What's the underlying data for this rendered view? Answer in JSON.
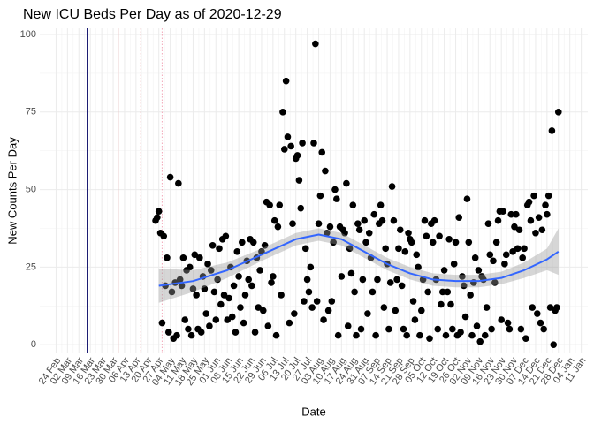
{
  "chart_data": {
    "type": "scatter",
    "title": "New ICU Beds Per Day as of 2020-12-29",
    "xlabel": "Date",
    "ylabel": "New Counts Per Day",
    "xlim": [
      "02-14",
      "01-15"
    ],
    "ylim": [
      -2.8,
      102
    ],
    "yticks": [
      0,
      25,
      50,
      75,
      100
    ],
    "xticks": [
      {
        "value": "02-24",
        "label": "24 Feb"
      },
      {
        "value": "03-02",
        "label": "02 Mar"
      },
      {
        "value": "03-09",
        "label": "09 Mar"
      },
      {
        "value": "03-16",
        "label": "16 Mar"
      },
      {
        "value": "03-23",
        "label": "23 Mar"
      },
      {
        "value": "03-30",
        "label": "30 Mar"
      },
      {
        "value": "04-06",
        "label": "06 Apr"
      },
      {
        "value": "04-13",
        "label": "13 Apr"
      },
      {
        "value": "04-20",
        "label": "20 Apr"
      },
      {
        "value": "04-27",
        "label": "27 Apr"
      },
      {
        "value": "05-04",
        "label": "04 May"
      },
      {
        "value": "05-11",
        "label": "11 May"
      },
      {
        "value": "05-18",
        "label": "18 May"
      },
      {
        "value": "05-25",
        "label": "25 May"
      },
      {
        "value": "06-01",
        "label": "01 Jun"
      },
      {
        "value": "06-08",
        "label": "08 Jun"
      },
      {
        "value": "06-15",
        "label": "15 Jun"
      },
      {
        "value": "06-22",
        "label": "22 Jun"
      },
      {
        "value": "06-29",
        "label": "29 Jun"
      },
      {
        "value": "07-06",
        "label": "06 Jul"
      },
      {
        "value": "07-13",
        "label": "13 Jul"
      },
      {
        "value": "07-20",
        "label": "20 Jul"
      },
      {
        "value": "07-27",
        "label": "27 Jul"
      },
      {
        "value": "08-03",
        "label": "03 Aug"
      },
      {
        "value": "08-10",
        "label": "10 Aug"
      },
      {
        "value": "08-17",
        "label": "17 Aug"
      },
      {
        "value": "08-24",
        "label": "24 Aug"
      },
      {
        "value": "08-31",
        "label": "31 Aug"
      },
      {
        "value": "09-07",
        "label": "07 Sep"
      },
      {
        "value": "09-14",
        "label": "14 Sep"
      },
      {
        "value": "09-21",
        "label": "21 Sep"
      },
      {
        "value": "09-28",
        "label": "28 Sep"
      },
      {
        "value": "10-05",
        "label": "05 Oct"
      },
      {
        "value": "10-12",
        "label": "12 Oct"
      },
      {
        "value": "10-19",
        "label": "19 Oct"
      },
      {
        "value": "10-26",
        "label": "26 Oct"
      },
      {
        "value": "11-02",
        "label": "02 Nov"
      },
      {
        "value": "11-09",
        "label": "09 Nov"
      },
      {
        "value": "11-16",
        "label": "16 Nov"
      },
      {
        "value": "11-23",
        "label": "23 Nov"
      },
      {
        "value": "11-30",
        "label": "30 Nov"
      },
      {
        "value": "12-07",
        "label": "07 Dec"
      },
      {
        "value": "12-14",
        "label": "14 Dec"
      },
      {
        "value": "12-21",
        "label": "21 Dec"
      },
      {
        "value": "12-28",
        "label": "28 Dec"
      },
      {
        "value": "01-04",
        "label": "04 Jan"
      },
      {
        "value": "01-11",
        "label": "11 Jan"
      }
    ],
    "grid": true,
    "vlines": [
      {
        "x": "03-14",
        "color": "#191970",
        "dash": "solid"
      },
      {
        "x": "04-02",
        "color": "#cc2222",
        "dash": "solid"
      },
      {
        "x": "04-16",
        "color": "#cc2222",
        "dash": "dotted"
      },
      {
        "x": "04-29",
        "color": "#f2a8b8",
        "dash": "dotted"
      }
    ],
    "points": {
      "color": "#000000",
      "x": [
        "04-25",
        "04-26",
        "04-27",
        "04-28",
        "04-29",
        "04-30",
        "05-01",
        "05-02",
        "05-03",
        "05-04",
        "05-05",
        "05-06",
        "05-07",
        "05-08",
        "05-09",
        "05-10",
        "05-11",
        "05-12",
        "05-13",
        "05-14",
        "05-15",
        "05-16",
        "05-17",
        "05-18",
        "05-19",
        "05-20",
        "05-21",
        "05-22",
        "05-23",
        "05-24",
        "05-25",
        "05-26",
        "05-27",
        "05-28",
        "05-29",
        "05-30",
        "05-31",
        "06-01",
        "06-02",
        "06-03",
        "06-04",
        "06-05",
        "06-06",
        "06-07",
        "06-08",
        "06-09",
        "06-10",
        "06-11",
        "06-12",
        "06-13",
        "06-14",
        "06-15",
        "06-16",
        "06-17",
        "06-18",
        "06-19",
        "06-20",
        "06-21",
        "06-22",
        "06-23",
        "06-24",
        "06-25",
        "06-26",
        "06-27",
        "06-28",
        "06-29",
        "06-30",
        "07-01",
        "07-02",
        "07-03",
        "07-04",
        "07-05",
        "07-06",
        "07-07",
        "07-08",
        "07-09",
        "07-10",
        "07-11",
        "07-12",
        "07-13",
        "07-14",
        "07-15",
        "07-16",
        "07-17",
        "07-18",
        "07-19",
        "07-20",
        "07-21",
        "07-22",
        "07-23",
        "07-24",
        "07-25",
        "07-26",
        "07-27",
        "07-28",
        "07-29",
        "07-30",
        "07-31",
        "08-01",
        "08-02",
        "08-03",
        "08-04",
        "08-05",
        "08-06",
        "08-07",
        "08-08",
        "08-09",
        "08-10",
        "08-11",
        "08-12",
        "08-13",
        "08-14",
        "08-15",
        "08-16",
        "08-17",
        "08-18",
        "08-19",
        "08-20",
        "08-21",
        "08-22",
        "08-23",
        "08-24",
        "08-25",
        "08-26",
        "08-27",
        "08-28",
        "08-29",
        "08-30",
        "08-31",
        "09-01",
        "09-02",
        "09-03",
        "09-04",
        "09-05",
        "09-06",
        "09-07",
        "09-08",
        "09-09",
        "09-10",
        "09-11",
        "09-12",
        "09-13",
        "09-14",
        "09-15",
        "09-16",
        "09-17",
        "09-18",
        "09-19",
        "09-20",
        "09-21",
        "09-22",
        "09-23",
        "09-24",
        "09-25",
        "09-26",
        "09-27",
        "09-28",
        "09-29",
        "09-30",
        "10-01",
        "10-02",
        "10-03",
        "10-04",
        "10-05",
        "10-06",
        "10-07",
        "10-08",
        "10-09",
        "10-10",
        "10-11",
        "10-12",
        "10-13",
        "10-14",
        "10-15",
        "10-16",
        "10-17",
        "10-18",
        "10-19",
        "10-20",
        "10-21",
        "10-22",
        "10-23",
        "10-24",
        "10-25",
        "10-26",
        "10-27",
        "10-28",
        "10-29",
        "10-30",
        "10-31",
        "11-01",
        "11-02",
        "11-03",
        "11-04",
        "11-05",
        "11-06",
        "11-07",
        "11-08",
        "11-09",
        "11-10",
        "11-11",
        "11-12",
        "11-13",
        "11-14",
        "11-15",
        "11-16",
        "11-17",
        "11-18",
        "11-19",
        "11-20",
        "11-21",
        "11-22",
        "11-23",
        "11-24",
        "11-25",
        "11-26",
        "11-27",
        "11-28",
        "11-29",
        "11-30",
        "12-01",
        "12-02",
        "12-03",
        "12-04",
        "12-05",
        "12-06",
        "12-07",
        "12-08",
        "12-09",
        "12-10",
        "12-11",
        "12-12",
        "12-13",
        "12-14",
        "12-15",
        "12-16",
        "12-17",
        "12-18",
        "12-19",
        "12-20",
        "12-21",
        "12-22",
        "12-23",
        "12-24",
        "12-25",
        "12-26",
        "12-27",
        "12-28"
      ],
      "values": [
        40,
        41,
        43,
        36,
        7,
        35,
        19,
        28,
        4,
        54,
        17,
        2,
        20,
        3,
        52,
        21,
        19,
        28,
        8,
        24,
        5,
        25,
        3,
        18,
        29,
        16,
        5,
        28,
        4,
        22,
        18,
        10,
        26,
        6,
        24,
        32,
        17,
        8,
        21,
        31,
        13,
        34,
        16,
        35,
        8,
        15,
        25,
        9,
        19,
        4,
        30,
        22,
        12,
        33,
        7,
        16,
        27,
        21,
        34,
        19,
        33,
        4,
        28,
        12,
        24,
        30,
        11,
        32,
        46,
        6,
        45,
        20,
        22,
        40,
        3,
        38,
        45,
        16,
        75,
        63,
        85,
        67,
        7,
        64,
        39,
        10,
        60,
        61,
        53,
        44,
        65,
        14,
        31,
        21,
        17,
        25,
        12,
        65,
        97,
        14,
        39,
        48,
        62,
        8,
        56,
        36,
        11,
        38,
        14,
        33,
        50,
        47,
        3,
        38,
        22,
        37,
        36,
        52,
        6,
        31,
        23,
        45,
        17,
        3,
        39,
        37,
        5,
        21,
        40,
        33,
        10,
        36,
        28,
        17,
        42,
        3,
        21,
        39,
        45,
        40,
        12,
        31,
        26,
        5,
        20,
        51,
        40,
        11,
        21,
        31,
        37,
        19,
        5,
        30,
        3,
        36,
        34,
        33,
        14,
        8,
        29,
        25,
        3,
        11,
        21,
        40,
        35,
        17,
        2,
        39,
        33,
        40,
        21,
        5,
        35,
        13,
        17,
        24,
        3,
        17,
        34,
        13,
        5,
        26,
        33,
        3,
        41,
        4,
        22,
        19,
        9,
        47,
        33,
        16,
        3,
        20,
        28,
        6,
        24,
        1,
        22,
        21,
        3,
        12,
        39,
        29,
        5,
        27,
        20,
        33,
        40,
        43,
        8,
        43,
        26,
        29,
        7,
        5,
        42,
        30,
        38,
        42,
        31,
        37,
        5,
        28,
        31,
        2,
        45,
        46,
        40,
        12,
        48,
        36,
        10,
        41,
        7,
        37,
        5,
        45,
        42,
        48,
        12,
        69,
        0,
        11,
        12,
        75
      ]
    },
    "smooth": {
      "color": "#3366ff",
      "band_color": "#999999",
      "x": [
        "04-27",
        "05-18",
        "06-08",
        "06-29",
        "07-20",
        "08-03",
        "08-17",
        "08-31",
        "09-14",
        "09-28",
        "10-12",
        "10-26",
        "11-09",
        "11-23",
        "12-07",
        "12-21",
        "12-28"
      ],
      "values": [
        19,
        20.5,
        24,
        29,
        34,
        35.5,
        34,
        30,
        26,
        23,
        21,
        20.5,
        20.5,
        21.5,
        24,
        27.5,
        30
      ],
      "lower": [
        13.5,
        17,
        21.5,
        27,
        32,
        33.5,
        32,
        28,
        24,
        21,
        19,
        18.5,
        18.5,
        19.5,
        21.5,
        24,
        22.5
      ],
      "upper": [
        24.5,
        24,
        26.5,
        31,
        36,
        37.5,
        36,
        32,
        28,
        25,
        23,
        22.5,
        22.5,
        23.5,
        26.5,
        31,
        37.5
      ]
    }
  }
}
